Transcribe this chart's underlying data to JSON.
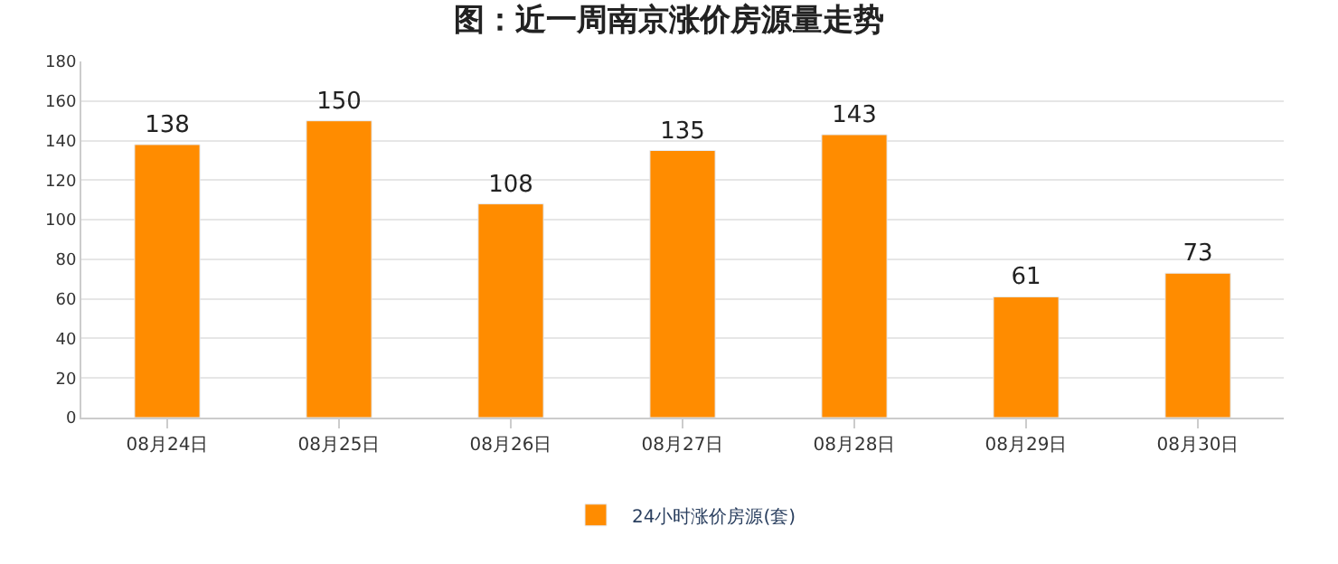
{
  "chart_data": {
    "type": "bar",
    "title": "图：近一周南京涨价房源量走势",
    "categories": [
      "08月24日",
      "08月25日",
      "08月26日",
      "08月27日",
      "08月28日",
      "08月29日",
      "08月30日"
    ],
    "series": [
      {
        "name": "24小时涨价房源(套)",
        "color": "#ff8c00",
        "values": [
          138,
          150,
          108,
          135,
          143,
          61,
          73
        ]
      }
    ],
    "ylim": [
      0,
      180
    ],
    "yticks": [
      0,
      20,
      40,
      60,
      80,
      100,
      120,
      140,
      160,
      180
    ],
    "grid": "y",
    "legend": "bottom",
    "data_labels": true
  }
}
